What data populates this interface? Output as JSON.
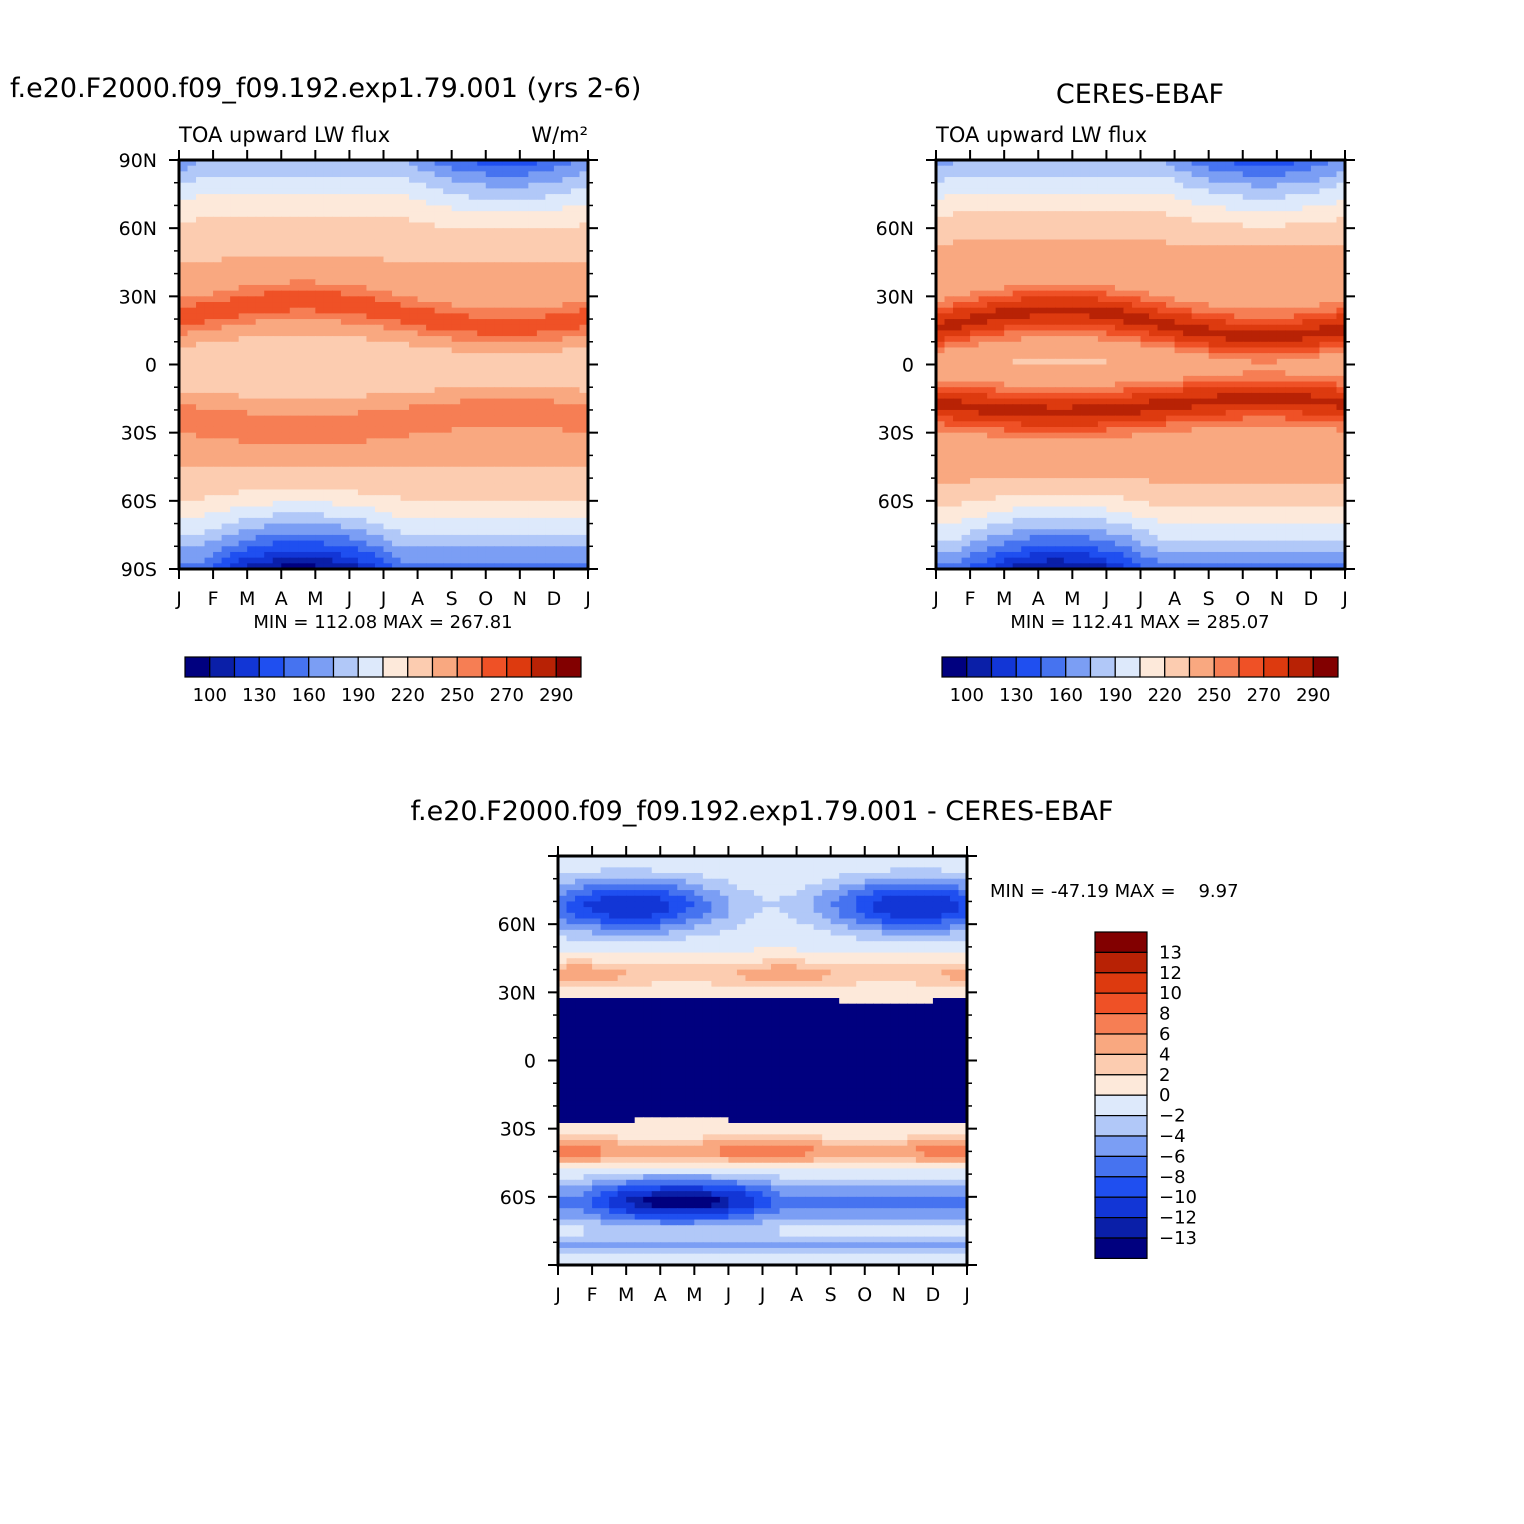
{
  "chart_data": [
    {
      "type": "heatmap",
      "title": "f.e20.F2000.f09_f09.192.exp1.79.001 (yrs 2-6)",
      "subtitle_left": "TOA upward LW flux",
      "subtitle_right": "W/m²",
      "x_labels": [
        "J",
        "F",
        "M",
        "A",
        "M",
        "J",
        "J",
        "A",
        "S",
        "O",
        "N",
        "D",
        "J"
      ],
      "y_labels": [
        "90N",
        "60N",
        "30N",
        "0",
        "30S",
        "60S",
        "90S"
      ],
      "ylim": [
        -90,
        90
      ],
      "minmax_text": "MIN = 112.08 MAX = 267.81",
      "colorbar_labels": [
        "100",
        "130",
        "160",
        "190",
        "220",
        "250",
        "270",
        "290"
      ],
      "field": "model"
    },
    {
      "type": "heatmap",
      "title": "CERES-EBAF",
      "subtitle_left": "TOA upward LW flux",
      "subtitle_right": "",
      "x_labels": [
        "J",
        "F",
        "M",
        "A",
        "M",
        "J",
        "J",
        "A",
        "S",
        "O",
        "N",
        "D",
        "J"
      ],
      "y_labels": [
        "",
        "60N",
        "30N",
        "0",
        "30S",
        "60S",
        ""
      ],
      "ylim": [
        -90,
        90
      ],
      "minmax_text": "MIN = 112.41 MAX = 285.07",
      "colorbar_labels": [
        "100",
        "130",
        "160",
        "190",
        "220",
        "250",
        "270",
        "290"
      ],
      "field": "obs"
    },
    {
      "type": "heatmap",
      "title": "f.e20.F2000.f09_f09.192.exp1.79.001 - CERES-EBAF",
      "x_labels": [
        "J",
        "F",
        "M",
        "A",
        "M",
        "J",
        "J",
        "A",
        "S",
        "O",
        "N",
        "D",
        "J"
      ],
      "y_labels": [
        "",
        "60N",
        "30N",
        "0",
        "30S",
        "60S",
        ""
      ],
      "ylim": [
        -90,
        90
      ],
      "minmax_text": "MIN = -47.19 MAX =    9.97",
      "colorbar_labels": [
        "13",
        "12",
        "10",
        "8",
        "6",
        "4",
        "2",
        "0",
        "-2",
        "-4",
        "-6",
        "-8",
        "-10",
        "-12",
        "-13"
      ],
      "field": "diff"
    }
  ],
  "palette": [
    "#00007f",
    "#0a1fa8",
    "#1236d6",
    "#1f4ff0",
    "#4673f0",
    "#7b9ef4",
    "#b1c8f8",
    "#dde9fb",
    "#fde9da",
    "#fcccb0",
    "#f9a880",
    "#f67e54",
    "#ef5126",
    "#dd3a0f",
    "#b82205",
    "#820000"
  ]
}
